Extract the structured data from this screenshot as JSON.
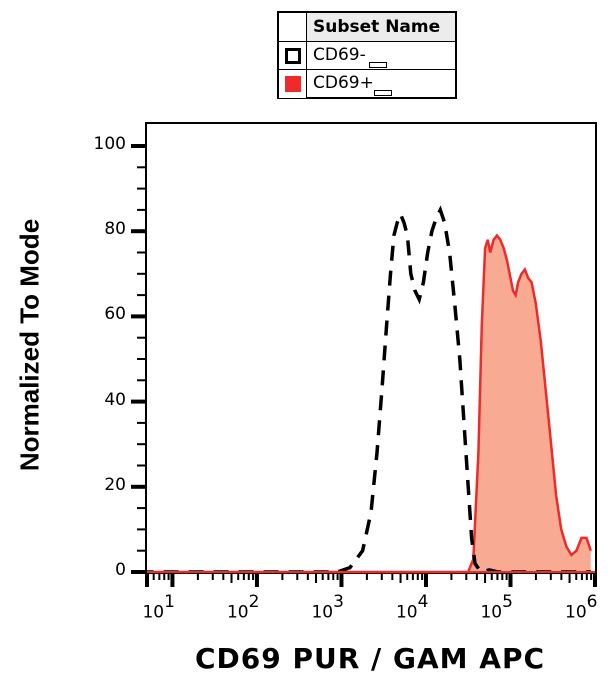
{
  "legend": {
    "header": "Subset Name",
    "items": [
      {
        "label": "CD69-",
        "style": "dashed-outline",
        "color": "#000000"
      },
      {
        "label": "CD69+",
        "style": "filled",
        "color": "#ee2a2a",
        "fill": "#f8ab92"
      }
    ]
  },
  "chart_data": {
    "type": "area",
    "title": "",
    "xlabel": "CD69 PUR / GAM APC",
    "ylabel": "Normalized To Mode",
    "xscale": "log",
    "xlim": [
      5,
      1000000
    ],
    "ylim": [
      0,
      105
    ],
    "grid": false,
    "legend_position": "top",
    "y_ticks": [
      0,
      20,
      40,
      60,
      80,
      100
    ],
    "x_ticks": [
      {
        "base": "10",
        "exp": "1",
        "value": 10
      },
      {
        "base": "10",
        "exp": "2",
        "value": 100
      },
      {
        "base": "10",
        "exp": "3",
        "value": 1000
      },
      {
        "base": "10",
        "exp": "4",
        "value": 10000
      },
      {
        "base": "10",
        "exp": "5",
        "value": 100000
      },
      {
        "base": "10",
        "exp": "6",
        "value": 1000000
      }
    ],
    "series": [
      {
        "name": "CD69-",
        "style": "dashed",
        "color": "#000000",
        "points_log10x_y": [
          [
            0.6,
            0
          ],
          [
            2.95,
            0
          ],
          [
            3.1,
            1
          ],
          [
            3.25,
            5
          ],
          [
            3.35,
            14
          ],
          [
            3.42,
            28
          ],
          [
            3.48,
            43
          ],
          [
            3.53,
            57
          ],
          [
            3.58,
            70
          ],
          [
            3.62,
            79
          ],
          [
            3.66,
            82
          ],
          [
            3.7,
            84
          ],
          [
            3.74,
            82
          ],
          [
            3.78,
            79
          ],
          [
            3.82,
            70
          ],
          [
            3.87,
            66
          ],
          [
            3.92,
            64
          ],
          [
            3.97,
            68
          ],
          [
            4.02,
            75
          ],
          [
            4.07,
            80
          ],
          [
            4.12,
            83
          ],
          [
            4.17,
            85
          ],
          [
            4.22,
            82
          ],
          [
            4.28,
            75
          ],
          [
            4.34,
            63
          ],
          [
            4.4,
            50
          ],
          [
            4.45,
            35
          ],
          [
            4.5,
            20
          ],
          [
            4.54,
            8
          ],
          [
            4.58,
            2
          ],
          [
            4.65,
            0
          ],
          [
            4.75,
            0.5
          ],
          [
            4.85,
            0
          ],
          [
            5.95,
            0
          ]
        ]
      },
      {
        "name": "CD69+",
        "style": "filled",
        "color": "#ee2a2a",
        "fill": "#f8ab92",
        "points_log10x_y": [
          [
            0.6,
            0
          ],
          [
            4.5,
            0
          ],
          [
            4.56,
            3
          ],
          [
            4.62,
            28
          ],
          [
            4.66,
            58
          ],
          [
            4.7,
            76
          ],
          [
            4.73,
            78
          ],
          [
            4.76,
            75
          ],
          [
            4.8,
            78
          ],
          [
            4.84,
            79
          ],
          [
            4.88,
            78
          ],
          [
            4.92,
            76
          ],
          [
            4.96,
            73
          ],
          [
            5.0,
            69
          ],
          [
            5.03,
            66
          ],
          [
            5.06,
            65
          ],
          [
            5.09,
            68
          ],
          [
            5.13,
            70
          ],
          [
            5.17,
            71
          ],
          [
            5.21,
            69
          ],
          [
            5.25,
            68
          ],
          [
            5.3,
            63
          ],
          [
            5.36,
            54
          ],
          [
            5.42,
            42
          ],
          [
            5.48,
            30
          ],
          [
            5.54,
            18
          ],
          [
            5.6,
            10
          ],
          [
            5.66,
            6
          ],
          [
            5.72,
            4
          ],
          [
            5.78,
            5
          ],
          [
            5.84,
            8
          ],
          [
            5.9,
            8
          ],
          [
            5.95,
            5
          ]
        ]
      }
    ]
  }
}
